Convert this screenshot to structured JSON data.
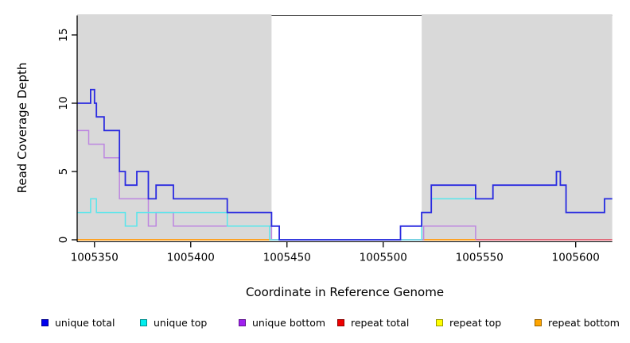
{
  "chart_data": {
    "type": "line",
    "subtype": "step-coverage-plot",
    "title": "",
    "xlabel": "Coordinate in Reference Genome",
    "ylabel": "Read Coverage Depth",
    "xlim": [
      1005341,
      1005619
    ],
    "ylim": [
      0,
      16.5
    ],
    "xticks": [
      1005350,
      1005400,
      1005450,
      1005500,
      1005550,
      1005600
    ],
    "yticks": [
      0,
      5,
      10,
      15
    ],
    "grid": false,
    "legend_position": "bottom",
    "region_color": "#d9d9d9",
    "shaded_regions": [
      [
        1005341,
        1005442
      ],
      [
        1005520,
        1005619
      ]
    ],
    "series": [
      {
        "name": "repeat total",
        "color": "#e2485c",
        "width": 1.4,
        "segments": [
          {
            "steps": [
              [
                1005341,
                0
              ]
            ],
            "end": 1005619
          }
        ]
      },
      {
        "name": "repeat top",
        "color": "#f5e642",
        "width": 1.4,
        "segments": [
          {
            "steps": [
              [
                1005341,
                0
              ]
            ],
            "end": 1005442
          },
          {
            "steps": [
              [
                1005520,
                0
              ]
            ],
            "end": 1005548
          }
        ]
      },
      {
        "name": "repeat bottom",
        "color": "#ff9f1c",
        "width": 1.8,
        "segments": [
          {
            "steps": [
              [
                1005341,
                0
              ]
            ],
            "end": 1005442
          },
          {
            "steps": [
              [
                1005520,
                0
              ]
            ],
            "end": 1005548
          }
        ]
      },
      {
        "name": "unique bottom",
        "color": "#bd86e0",
        "width": 1.5,
        "segments": [
          {
            "steps": [
              [
                1005341,
                8
              ],
              [
                1005347,
                7
              ],
              [
                1005355,
                6
              ],
              [
                1005363,
                3
              ],
              [
                1005378,
                1
              ],
              [
                1005382,
                2
              ],
              [
                1005391,
                1
              ],
              [
                1005442,
                0
              ],
              [
                1005521,
                1
              ],
              [
                1005548,
                0
              ]
            ],
            "end": 1005548
          }
        ]
      },
      {
        "name": "unique top",
        "color": "#58e6ec",
        "width": 1.5,
        "segments": [
          {
            "steps": [
              [
                1005341,
                2
              ],
              [
                1005348,
                3
              ],
              [
                1005351,
                2
              ],
              [
                1005366,
                1
              ],
              [
                1005372,
                2
              ],
              [
                1005419,
                1
              ],
              [
                1005441,
                0
              ],
              [
                1005520,
                2
              ],
              [
                1005525,
                3
              ],
              [
                1005557,
                4
              ],
              [
                1005590,
                5
              ],
              [
                1005592,
                4
              ],
              [
                1005595,
                2
              ],
              [
                1005615,
                3
              ]
            ],
            "end": 1005619
          }
        ]
      },
      {
        "name": "unique total",
        "color": "#2a2ae0",
        "width": 1.8,
        "segments": [
          {
            "steps": [
              [
                1005341,
                10
              ],
              [
                1005348,
                11
              ],
              [
                1005350,
                10
              ],
              [
                1005351,
                9
              ],
              [
                1005355,
                8
              ],
              [
                1005363,
                5
              ],
              [
                1005366,
                4
              ],
              [
                1005372,
                5
              ],
              [
                1005378,
                3
              ],
              [
                1005382,
                4
              ],
              [
                1005391,
                3
              ],
              [
                1005419,
                2
              ],
              [
                1005442,
                1
              ],
              [
                1005446,
                0
              ],
              [
                1005509,
                1
              ],
              [
                1005520,
                2
              ],
              [
                1005525,
                4
              ],
              [
                1005548,
                3
              ],
              [
                1005557,
                4
              ],
              [
                1005590,
                5
              ],
              [
                1005592,
                4
              ],
              [
                1005595,
                2
              ],
              [
                1005615,
                3
              ]
            ],
            "end": 1005619
          }
        ]
      }
    ],
    "legend": [
      {
        "label": "unique total",
        "color": "#0000ee"
      },
      {
        "label": "unique top",
        "color": "#00eeee"
      },
      {
        "label": "unique bottom",
        "color": "#a020f0"
      },
      {
        "label": "repeat total",
        "color": "#ee0000"
      },
      {
        "label": "repeat top",
        "color": "#ffff00"
      },
      {
        "label": "repeat bottom",
        "color": "#ffa500"
      }
    ]
  }
}
